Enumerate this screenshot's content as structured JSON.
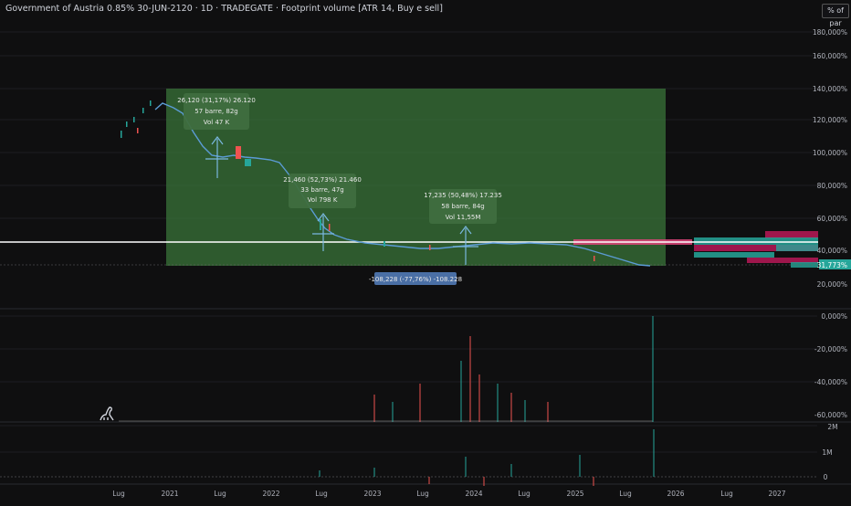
{
  "header": {
    "title": "Government of Austria 0.85% 30-JUN-2120 · 1D · TRADEGATE · Footprint volume [ATR 14, Buy e sell]",
    "scale_button": "% of par"
  },
  "price_axis": {
    "labels": [
      "180,000%",
      "160,000%",
      "140,000%",
      "120,000%",
      "100,000%",
      "80,000%",
      "60,000%",
      "40,000%",
      "20,000%"
    ],
    "current_value": "31,773%",
    "current_color": "#26a69a"
  },
  "osc_axis": {
    "labels": [
      "0,000%",
      "-20,000%",
      "-40,000%",
      "-60,000%"
    ]
  },
  "vol_axis": {
    "labels": [
      "2M",
      "1M",
      "0"
    ]
  },
  "time_axis": {
    "labels": [
      "Lug",
      "2021",
      "Lug",
      "2022",
      "Lug",
      "2023",
      "Lug",
      "2024",
      "Lug",
      "2025",
      "Lug",
      "2026",
      "Lug",
      "2027"
    ]
  },
  "measurements": [
    {
      "line1": "26,120 (31,17%) 26.120",
      "line2": "57 barre, 82g",
      "line3": "Vol 47 K"
    },
    {
      "line1": "21,460 (52,73%) 21.460",
      "line2": "33 barre, 47g",
      "line3": "Vol 798 K"
    },
    {
      "line1": "17,235 (50,48%) 17.235",
      "line2": "58 barre, 84g",
      "line3": "Vol 11,55M"
    }
  ],
  "range_label": "-108,228 (-77,76%) -108.228",
  "colors": {
    "range_fill": "#3c7a3c",
    "up": "#26a69a",
    "down": "#ef5350",
    "line": "#5b9bd5"
  },
  "logo": {
    "name": "tradingview-dino-icon"
  }
}
